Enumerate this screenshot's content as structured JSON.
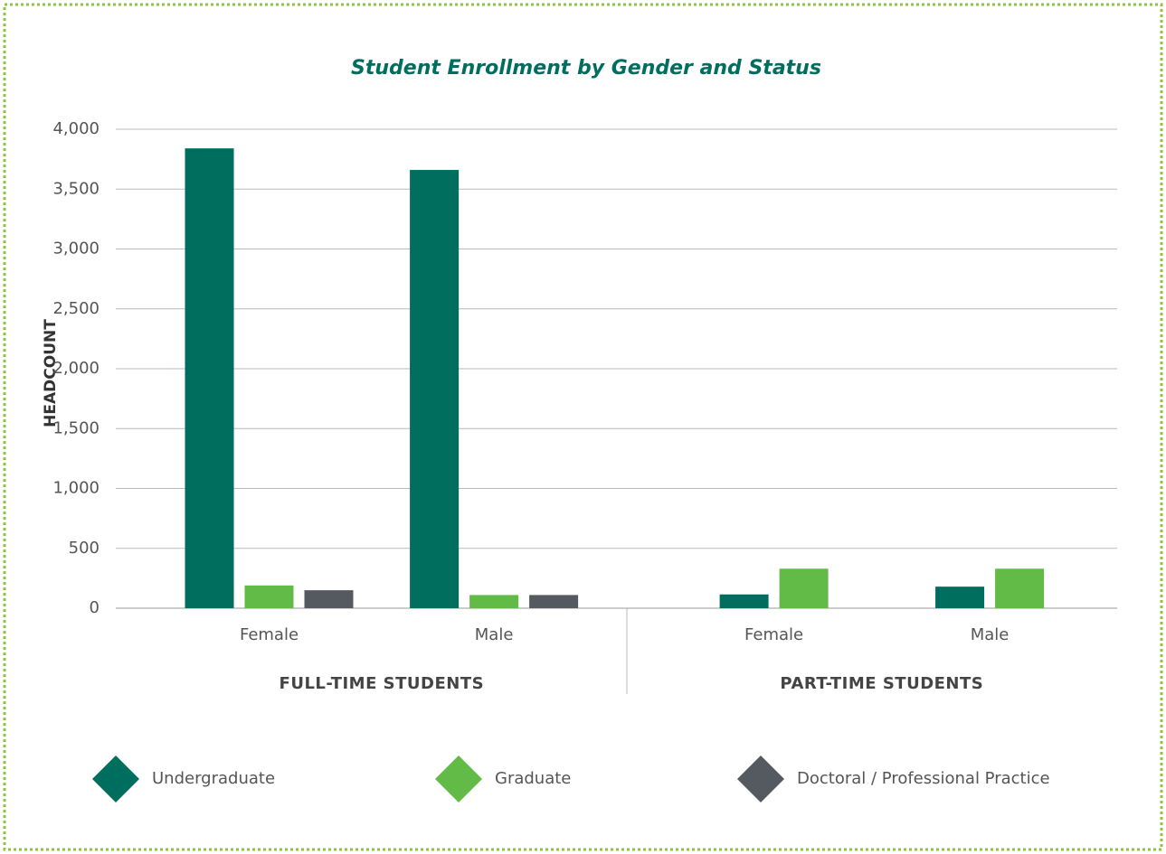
{
  "chart_data": {
    "type": "bar",
    "title": "Student Enrollment by Gender and Status",
    "y_label": "HEADCOUNT",
    "categories": [
      "Female",
      "Male",
      "Female",
      "Male"
    ],
    "groups": [
      "FULL-TIME STUDENTS",
      "PART-TIME STUDENTS"
    ],
    "series": [
      {
        "name": "Undergraduate",
        "color": "#006e5f",
        "values": [
          3840,
          3660,
          115,
          180
        ]
      },
      {
        "name": "Graduate",
        "color": "#62bb46",
        "values": [
          190,
          110,
          330,
          330
        ]
      },
      {
        "name": "Doctoral / Professional Practice",
        "color": "#545a60",
        "values": [
          150,
          110,
          null,
          null
        ]
      }
    ],
    "ylim": [
      0,
      4000
    ],
    "yticks": [
      0,
      500,
      {
        "value": 1000,
        "label": "1,000"
      },
      {
        "value": 1500,
        "label": "1,500"
      },
      {
        "value": 2000,
        "label": "2,000"
      },
      {
        "value": 2500,
        "label": "2,500"
      },
      {
        "value": 3000,
        "label": "3,000"
      },
      {
        "value": 3500,
        "label": "3,500"
      },
      {
        "value": 4000,
        "label": "4,000"
      }
    ],
    "grid": true
  }
}
